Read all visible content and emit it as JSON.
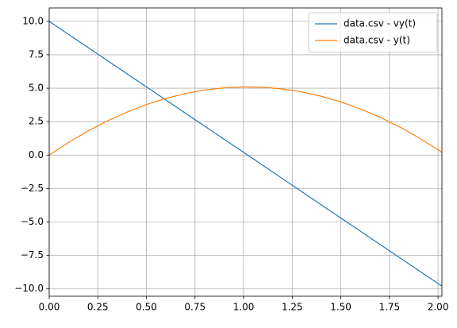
{
  "chart_data": {
    "type": "line",
    "x": [
      0,
      0.1,
      0.2,
      0.3,
      0.4,
      0.5,
      0.6,
      0.7,
      0.8,
      0.9,
      1.0,
      1.1,
      1.2,
      1.3,
      1.4,
      1.5,
      1.6,
      1.7,
      1.8,
      1.9,
      2.0,
      2.02
    ],
    "series": [
      {
        "name": "data.csv - vy(t)",
        "color": "#1f77b4",
        "values": [
          10,
          9.02,
          8.04,
          7.06,
          6.08,
          5.1,
          4.12,
          3.14,
          2.16,
          1.18,
          0.2,
          -0.78,
          -1.76,
          -2.74,
          -3.72,
          -4.7,
          -5.68,
          -6.66,
          -7.64,
          -8.62,
          -9.6,
          -9.796
        ]
      },
      {
        "name": "data.csv - y(t)",
        "color": "#ff7f0e",
        "values": [
          0,
          0.951,
          1.804,
          2.559,
          3.216,
          3.775,
          4.236,
          4.599,
          4.864,
          5.031,
          5.1,
          5.071,
          4.944,
          4.719,
          4.396,
          3.975,
          3.456,
          2.839,
          2.124,
          1.311,
          0.4,
          0.206
        ]
      }
    ],
    "xlim": [
      0,
      2.02
    ],
    "ylim": [
      -10.55,
      11.0
    ],
    "xticks": [
      {
        "value": 0,
        "label": "0.00"
      },
      {
        "value": 0.25,
        "label": "0.25"
      },
      {
        "value": 0.5,
        "label": "0.50"
      },
      {
        "value": 0.75,
        "label": "0.75"
      },
      {
        "value": 1.0,
        "label": "1.00"
      },
      {
        "value": 1.25,
        "label": "1.25"
      },
      {
        "value": 1.5,
        "label": "1.50"
      },
      {
        "value": 1.75,
        "label": "1.75"
      },
      {
        "value": 2.0,
        "label": "2.00"
      }
    ],
    "yticks": [
      {
        "value": -10,
        "label": "−10.0"
      },
      {
        "value": -7.5,
        "label": "−7.5"
      },
      {
        "value": -5,
        "label": "−5.0"
      },
      {
        "value": -2.5,
        "label": "−2.5"
      },
      {
        "value": 0,
        "label": "0.0"
      },
      {
        "value": 2.5,
        "label": "2.5"
      },
      {
        "value": 5,
        "label": "5.0"
      },
      {
        "value": 7.5,
        "label": "7.5"
      },
      {
        "value": 10,
        "label": "10.0"
      }
    ],
    "grid": true,
    "legend": "upper right"
  }
}
